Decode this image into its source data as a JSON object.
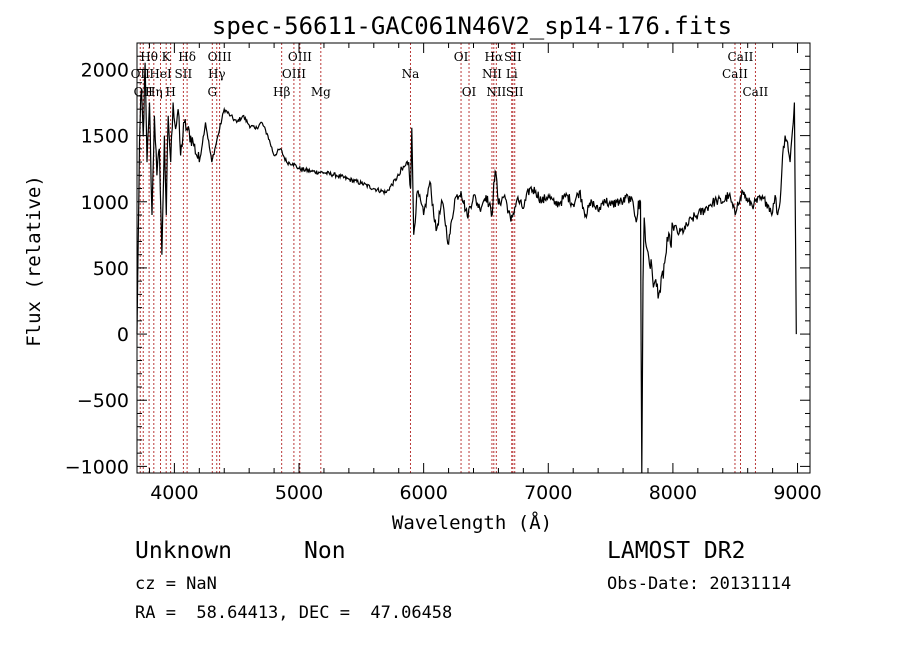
{
  "chart_data": {
    "type": "line",
    "title": "spec-56611-GAC061N46V2_sp14-176.fits",
    "xlabel": "Wavelength (Å)",
    "ylabel": "Flux (relative)",
    "xlim": [
      3700,
      9100
    ],
    "ylim": [
      -1050,
      2200
    ],
    "xticks": [
      4000,
      5000,
      6000,
      7000,
      8000,
      9000
    ],
    "yticks": [
      -1000,
      -500,
      0,
      500,
      1000,
      1500,
      2000
    ],
    "xtick_labels": [
      "4000",
      "5000",
      "6000",
      "7000",
      "8000",
      "9000"
    ],
    "ytick_labels": [
      "−1000",
      "−500",
      "0",
      "500",
      "1000",
      "1500",
      "2000"
    ],
    "grid": false,
    "series": [
      {
        "color": "#000000",
        "x": [
          3700,
          3710,
          3720,
          3735,
          3750,
          3765,
          3780,
          3800,
          3820,
          3840,
          3860,
          3880,
          3900,
          3920,
          3935,
          3950,
          3970,
          3990,
          4010,
          4030,
          4050,
          4080,
          4100,
          4150,
          4200,
          4250,
          4300,
          4350,
          4400,
          4450,
          4500,
          4550,
          4600,
          4650,
          4700,
          4750,
          4800,
          4850,
          4900,
          4950,
          5000,
          5100,
          5200,
          5300,
          5400,
          5500,
          5600,
          5700,
          5800,
          5850,
          5880,
          5895,
          5905,
          5920,
          5950,
          6000,
          6050,
          6100,
          6150,
          6200,
          6250,
          6300,
          6350,
          6400,
          6450,
          6500,
          6550,
          6563,
          6580,
          6600,
          6650,
          6700,
          6750,
          6800,
          6850,
          6900,
          6950,
          7000,
          7050,
          7100,
          7150,
          7200,
          7250,
          7300,
          7350,
          7400,
          7450,
          7500,
          7550,
          7600,
          7640,
          7660,
          7680,
          7700,
          7740,
          7750,
          7760,
          7770,
          7780,
          7800,
          7850,
          7900,
          7940,
          7960,
          7980,
          8000,
          8050,
          8100,
          8150,
          8200,
          8250,
          8300,
          8350,
          8400,
          8450,
          8500,
          8520,
          8540,
          8560,
          8600,
          8650,
          8700,
          8750,
          8800,
          8820,
          8840,
          8860,
          8880,
          8900,
          8920,
          8940,
          8960,
          8975,
          8990
        ],
        "y": [
          0,
          700,
          1450,
          1850,
          1500,
          2050,
          1300,
          1750,
          900,
          1650,
          1200,
          1400,
          600,
          1500,
          900,
          1650,
          1300,
          1750,
          1550,
          1700,
          1350,
          1600,
          1550,
          1450,
          1300,
          1600,
          1300,
          1500,
          1700,
          1650,
          1600,
          1650,
          1580,
          1550,
          1600,
          1500,
          1350,
          1400,
          1300,
          1290,
          1250,
          1230,
          1220,
          1200,
          1170,
          1140,
          1100,
          1070,
          1200,
          1270,
          1300,
          1100,
          1560,
          750,
          1080,
          900,
          1150,
          780,
          1000,
          680,
          1020,
          1080,
          890,
          1050,
          950,
          1050,
          900,
          1150,
          1220,
          980,
          1050,
          850,
          1020,
          950,
          1100,
          1080,
          1000,
          1050,
          980,
          1000,
          1050,
          980,
          1080,
          900,
          1000,
          930,
          1020,
          970,
          1000,
          1000,
          1040,
          1000,
          1000,
          880,
          1000,
          -1050,
          400,
          880,
          700,
          620,
          380,
          320,
          580,
          700,
          680,
          820,
          760,
          800,
          870,
          900,
          940,
          980,
          1010,
          1000,
          1050,
          900,
          1000,
          1030,
          1080,
          1000,
          980,
          1020,
          1000,
          920,
          1050,
          900,
          1000,
          1350,
          1500,
          1450,
          1300,
          1550,
          1750,
          0
        ]
      }
    ],
    "line_ids": [
      {
        "x": 3797,
        "name": "Hθ",
        "row": 1
      },
      {
        "x": 3726,
        "name": "OII",
        "row": 2
      },
      {
        "x": 3750,
        "name": "OII",
        "row": 3
      },
      {
        "x": 3835,
        "name": "Hη",
        "row": 3
      },
      {
        "x": 3889,
        "name": "HeI",
        "row": 2
      },
      {
        "x": 3934,
        "name": "K",
        "row": 1
      },
      {
        "x": 3970,
        "name": "H",
        "row": 3
      },
      {
        "x": 4072,
        "name": "SII",
        "row": 2
      },
      {
        "x": 4102,
        "name": "Hδ",
        "row": 1
      },
      {
        "x": 4304,
        "name": "G",
        "row": 3
      },
      {
        "x": 4340,
        "name": "Hγ",
        "row": 2
      },
      {
        "x": 4363,
        "name": "OIII",
        "row": 1
      },
      {
        "x": 4861,
        "name": "Hβ",
        "row": 3
      },
      {
        "x": 4959,
        "name": "OIII",
        "row": 2
      },
      {
        "x": 5007,
        "name": "OIII",
        "row": 1
      },
      {
        "x": 5175,
        "name": "Mg",
        "row": 3
      },
      {
        "x": 5894,
        "name": "Na",
        "row": 2
      },
      {
        "x": 6300,
        "name": "OI",
        "row": 1
      },
      {
        "x": 6364,
        "name": "OI",
        "row": 3
      },
      {
        "x": 6548,
        "name": "NII",
        "row": 2
      },
      {
        "x": 6563,
        "name": "Hα",
        "row": 1
      },
      {
        "x": 6583,
        "name": "NII",
        "row": 3
      },
      {
        "x": 6707,
        "name": "Li",
        "row": 2
      },
      {
        "x": 6716,
        "name": "SII",
        "row": 1
      },
      {
        "x": 6731,
        "name": "SII",
        "row": 3
      },
      {
        "x": 8498,
        "name": "CaII",
        "row": 2
      },
      {
        "x": 8542,
        "name": "CaII",
        "row": 1
      },
      {
        "x": 8662,
        "name": "CaII",
        "row": 3
      }
    ]
  },
  "info": {
    "class": "Unknown",
    "subclass": "Non",
    "survey": "LAMOST DR2",
    "cz": "cz = NaN",
    "obsdate": "Obs-Date: 20131114",
    "radec": "RA =  58.64413, DEC =  47.06458"
  }
}
